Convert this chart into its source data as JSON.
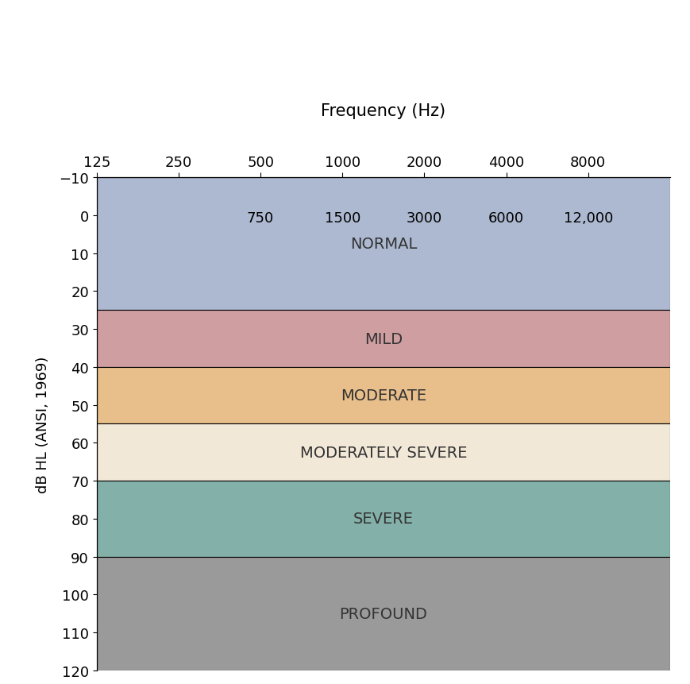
{
  "title": "Frequency (Hz)",
  "ylabel": "dB HL (ANSI, 1969)",
  "ylim": [
    -10,
    120
  ],
  "yticks": [
    -10,
    0,
    10,
    20,
    30,
    40,
    50,
    60,
    70,
    80,
    90,
    100,
    110,
    120
  ],
  "top_ticks_row1": [
    "125",
    "250",
    "500",
    "1000",
    "2000",
    "4000",
    "8000"
  ],
  "top_ticks_row2": [
    "750",
    "1500",
    "3000",
    "6000",
    "12,000"
  ],
  "top_ticks_row2_positions": [
    2,
    3,
    4,
    5,
    6
  ],
  "top_tick_positions": [
    0,
    1,
    2,
    3,
    4,
    5,
    6
  ],
  "bands": [
    {
      "label": "NORMAL",
      "ymin": -10,
      "ymax": 25,
      "color": "#adb9d1"
    },
    {
      "label": "MILD",
      "ymin": 25,
      "ymax": 40,
      "color": "#cf9ea0"
    },
    {
      "label": "MODERATE",
      "ymin": 40,
      "ymax": 55,
      "color": "#e8be8a"
    },
    {
      "label": "MODERATELY SEVERE",
      "ymin": 55,
      "ymax": 70,
      "color": "#f2e8d8"
    },
    {
      "label": "SEVERE",
      "ymin": 70,
      "ymax": 90,
      "color": "#83b0a8"
    },
    {
      "label": "PROFOUND",
      "ymin": 90,
      "ymax": 120,
      "color": "#9a9a9a"
    }
  ],
  "band_label_fontsize": 14,
  "title_fontsize": 15,
  "ylabel_fontsize": 13,
  "tick_fontsize": 13,
  "figsize": [
    8.7,
    8.62
  ],
  "dpi": 100
}
